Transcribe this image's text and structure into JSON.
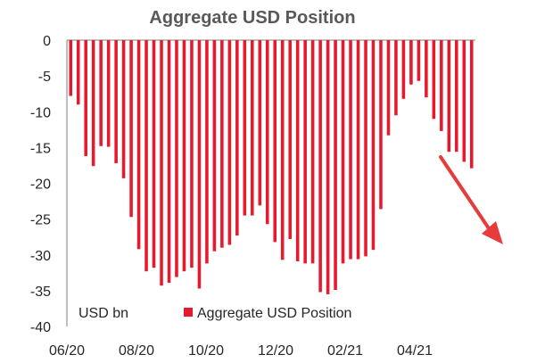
{
  "chart_data": {
    "type": "bar",
    "title": "Aggregate USD Position",
    "unit_label": "USD bn",
    "ylim": [
      -40,
      0
    ],
    "y_ticks": [
      0,
      -5,
      -10,
      -15,
      -20,
      -25,
      -30,
      -35,
      -40
    ],
    "x_tick_labels": [
      "06/20",
      "08/20",
      "10/20",
      "12/20",
      "02/21",
      "04/21"
    ],
    "grid": false,
    "legend_position": "bottom-center",
    "bar_color": "#e8192c",
    "arrow_color": "#e63c3c",
    "series": [
      {
        "name": "Aggregate USD Position",
        "values": [
          -7.8,
          -9.0,
          -16.2,
          -17.6,
          -14.8,
          -14.9,
          -17.2,
          -19.3,
          -24.7,
          -29.2,
          -32.3,
          -31.8,
          -34.3,
          -33.9,
          -33.1,
          -32.3,
          -31.8,
          -34.7,
          -31.2,
          -29.5,
          -29.0,
          -28.6,
          -27.3,
          -24.5,
          -24.5,
          -23.1,
          -25.7,
          -28.2,
          -30.7,
          -27.8,
          -30.9,
          -31.2,
          -31.2,
          -35.2,
          -35.5,
          -34.9,
          -31.2,
          -30.6,
          -30.6,
          -30.2,
          -29.3,
          -23.6,
          -13.3,
          -10.5,
          -8.2,
          -6.2,
          -5.7,
          -8.0,
          -11.0,
          -12.7,
          -15.6,
          -15.6,
          -17.0,
          -17.9
        ]
      }
    ]
  }
}
